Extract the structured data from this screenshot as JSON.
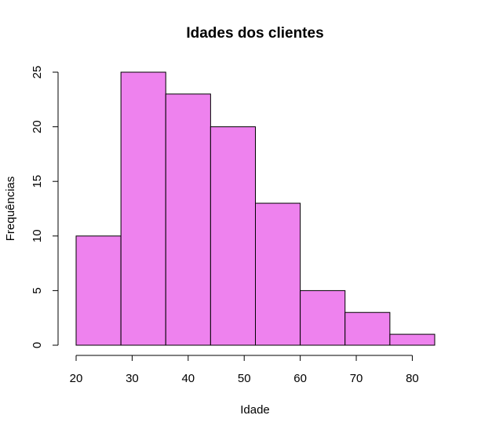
{
  "chart_data": {
    "type": "bar",
    "title": "Idades dos clientes",
    "xlabel": "Idade",
    "ylabel": "Frequências",
    "bins": [
      {
        "start": 20,
        "end": 28,
        "value": 10
      },
      {
        "start": 28,
        "end": 36,
        "value": 25
      },
      {
        "start": 36,
        "end": 44,
        "value": 23
      },
      {
        "start": 44,
        "end": 52,
        "value": 20
      },
      {
        "start": 52,
        "end": 60,
        "value": 13
      },
      {
        "start": 60,
        "end": 68,
        "value": 5
      },
      {
        "start": 68,
        "end": 76,
        "value": 3
      },
      {
        "start": 76,
        "end": 84,
        "value": 1
      }
    ],
    "xlim": [
      20,
      84
    ],
    "ylim": [
      0,
      25
    ],
    "x_ticks": [
      "20",
      "30",
      "40",
      "50",
      "60",
      "70",
      "80"
    ],
    "y_ticks": [
      "0",
      "5",
      "10",
      "15",
      "20",
      "25"
    ],
    "grid": false,
    "legend": "none",
    "bar_color": "#ee82ee",
    "bar_edge_color": "#000000"
  }
}
